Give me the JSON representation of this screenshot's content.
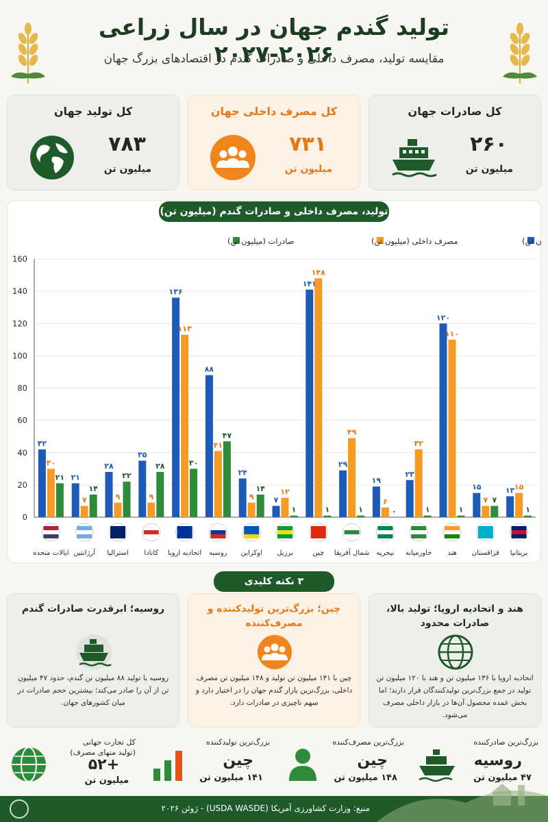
{
  "header": {
    "title": "تولید گندم جهان در سال زراعی ۲۰۲۶-۲۰۲۷",
    "subtitle": "مقایسه تولید، مصرف داخلی و صادرات گندم در اقتصادهای بزرگ جهان"
  },
  "cards": [
    {
      "title": "کل صادرات جهان",
      "value": "۲۶۰",
      "unit": "میلیون تن",
      "icon": "ship-icon"
    },
    {
      "title": "کل مصرف داخلی جهان",
      "value": "۷۳۱",
      "unit": "میلیون تن",
      "icon": "people-icon"
    },
    {
      "title": "کل تولید جهان",
      "value": "۷۸۳",
      "unit": "میلیون تن",
      "icon": "globe-icon"
    }
  ],
  "chart_title": "تولید، مصرف داخلی و صادرات گندم (میلیون تن)",
  "key_points_title": "۳ نکته کلیدی",
  "key_points": [
    {
      "title": "هند و اتحادیه اروپا؛ تولید بالا، صادرات محدود",
      "body": "اتحادیه اروپا با ۱۳۶ میلیون تن و هند با ۱۲۰ میلیون تن تولید در جمع بزرگ‌ترین تولیدکنندگان قرار دارند؛ اما بخش عمده محصول آن‌ها در بازار داخلی مصرف می‌شود.",
      "icon": "globe-grid-icon"
    },
    {
      "title": "چین؛ بزرگ‌ترین تولیدکننده و مصرف‌کننده",
      "body": "چین با ۱۴۱ میلیون تن تولید و ۱۴۸ میلیون تن مصرف داخلی، بزرگ‌ترین بازار گندم جهان را در اختیار دارد و سهم ناچیزی در صادرات دارد.",
      "icon": "people-icon"
    },
    {
      "title": "روسیه؛ ابرقدرت صادرات گندم",
      "body": "روسیه با تولید ۸۸ میلیون تن گندم، حدود ۴۷ میلیون تن از آن را صادر می‌کند؛ بیشترین حجم صادرات در میان کشورهای جهان.",
      "icon": "ship-icon"
    }
  ],
  "bottom_stats": [
    {
      "label": "بزرگ‌ترین صادرکننده",
      "value": "روسیه",
      "sub": "۴۷ میلیون تن",
      "icon": "ship-icon"
    },
    {
      "label": "بزرگ‌ترین مصرف‌کننده",
      "value": "چین",
      "sub": "۱۴۸ میلیون تن",
      "icon": "person-icon"
    },
    {
      "label": "بزرگ‌ترین تولیدکننده",
      "value": "چین",
      "sub": "۱۴۱ میلیون تن",
      "icon": "bar-chart-icon"
    },
    {
      "label": "کل تجارت جهانی\n(تولید منهای مصرف)",
      "value": "+۵۲",
      "sub": "میلیون تن",
      "icon": "globe-grid-icon"
    }
  ],
  "footer": "منبع: وزارت کشاورزی آمریکا (USDA WASDE) - ژوئن ۲۰۲۶",
  "colors": {
    "production": "#1e5bb8",
    "consumption": "#f59a23",
    "exports": "#2e8b3a",
    "dark_green": "#1f5a2b"
  },
  "chart_data": {
    "type": "bar",
    "categories": [
      "ایالات متحده",
      "آرژانتین",
      "استرالیا",
      "کانادا",
      "اتحادیه اروپا",
      "روسیه",
      "اوکراین",
      "برزیل",
      "چین",
      "شمال آفریقا",
      "نیجریه",
      "خاورمیانه",
      "هند",
      "قزاقستان",
      "بریتانیا"
    ],
    "flags": [
      "us",
      "ar",
      "au",
      "ca",
      "eu",
      "ru",
      "ua",
      "br",
      "cn",
      "nafrica",
      "ng",
      "me",
      "in",
      "kz",
      "gb"
    ],
    "series": [
      {
        "name": "تولید (میلیون تن)",
        "values": [
          42,
          21,
          28,
          35,
          136,
          88,
          24,
          7,
          141,
          29,
          19,
          23,
          120,
          15,
          13
        ],
        "labels": [
          "۴۲",
          "۲۱",
          "۲۸",
          "۳۵",
          "۱۳۶",
          "۸۸",
          "۲۴",
          "۷",
          "۱۴۱",
          "۲۹",
          "۱۹",
          "۲۳",
          "۱۲۰",
          "۱۵",
          "۱۳"
        ]
      },
      {
        "name": "مصرف داخلی (میلیون تن)",
        "values": [
          30,
          7,
          9,
          9,
          113,
          41,
          9,
          12,
          148,
          49,
          6,
          42,
          110,
          7,
          15
        ],
        "labels": [
          "۳۰",
          "۷",
          "۹",
          "۹",
          "۱۱۳",
          "۴۱",
          "۹",
          "۱۲",
          "۱۴۸",
          "۴۹",
          "۶",
          "۴۲",
          "۱۱۰",
          "۷",
          "۱۵"
        ]
      },
      {
        "name": "صادرات (میلیون تن)",
        "values": [
          21,
          14,
          22,
          28,
          30,
          47,
          14,
          1,
          1,
          1,
          0,
          1,
          1,
          7,
          1
        ],
        "labels": [
          "۲۱",
          "۱۴",
          "۲۲",
          "۲۸",
          "۳۰",
          "۴۷",
          "۱۴",
          "۱",
          "۱",
          "۱",
          "۰",
          "۱",
          "۱",
          "۷",
          "۱"
        ]
      }
    ],
    "ylim": [
      0,
      160
    ],
    "yticks": [
      0,
      20,
      40,
      60,
      80,
      100,
      120,
      140,
      160
    ],
    "legend": "top",
    "grid": true
  }
}
